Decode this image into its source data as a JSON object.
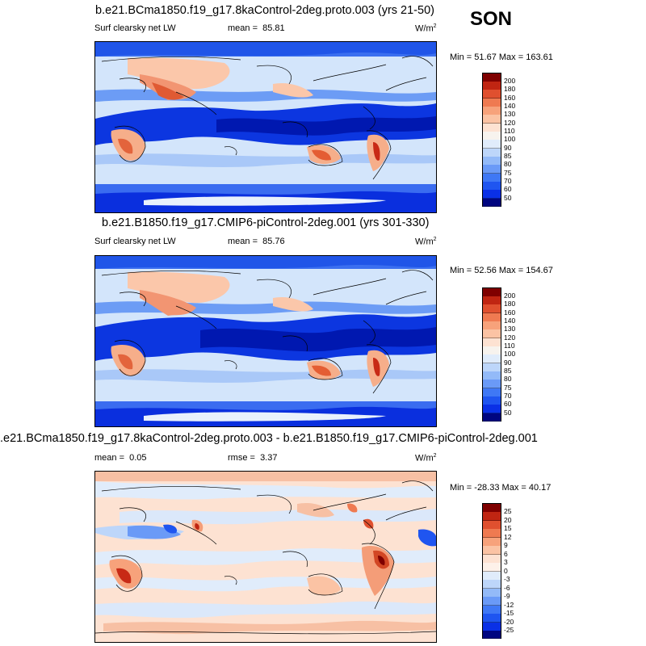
{
  "season": "SON",
  "colors": {
    "control_scale": [
      "#000580",
      "#0010c8",
      "#0a30e6",
      "#1f55f0",
      "#3f78f5",
      "#6a9af7",
      "#93baf8",
      "#bdd6fa",
      "#e0ecfb",
      "#fde2d2",
      "#fbc3a4",
      "#f7a27b",
      "#ef7a51",
      "#e0502f",
      "#c02512",
      "#7f0000"
    ],
    "diff_scale": [
      "#000580",
      "#0010c8",
      "#0a30e6",
      "#1f55f0",
      "#3f78f5",
      "#6a9af7",
      "#93baf8",
      "#bdd6fa",
      "#e0ecfb",
      "#fde2d2",
      "#fbc3a4",
      "#f7a27b",
      "#ef7a51",
      "#e0502f",
      "#c02512",
      "#7f0000"
    ],
    "ocean_low": "#0020d4",
    "ocean_mid": "#2458e8",
    "ocean_base": "#d3e5fb",
    "land_warm": "#f5b08d",
    "land_hot": "#e2562f"
  },
  "panels": [
    {
      "case": "b.e21.BCma1850.f19_g17.8kaControl-2deg.proto.003 (yrs 21-50)",
      "left_label": "Surf clearsky net LW",
      "stat_label": "mean =",
      "stat_value": "85.81",
      "units": "W/m",
      "units_exp": "2",
      "min_label": "Min =",
      "min_value": "51.67",
      "max_label": "Max =",
      "max_value": "163.61",
      "levels": [
        "200",
        "180",
        "160",
        "140",
        "130",
        "120",
        "110",
        "100",
        "90",
        "85",
        "80",
        "75",
        "70",
        "60",
        "50"
      ]
    },
    {
      "case": "b.e21.B1850.f19_g17.CMIP6-piControl-2deg.001 (yrs 301-330)",
      "left_label": "Surf clearsky net LW",
      "stat_label": "mean =",
      "stat_value": "85.76",
      "units": "W/m",
      "units_exp": "2",
      "min_label": "Min =",
      "min_value": "52.56",
      "max_label": "Max =",
      "max_value": "154.67",
      "levels": [
        "200",
        "180",
        "160",
        "140",
        "130",
        "120",
        "110",
        "100",
        "90",
        "85",
        "80",
        "75",
        "70",
        "60",
        "50"
      ]
    },
    {
      "case": ".e21.BCma1850.f19_g17.8kaControl-2deg.proto.003 - b.e21.B1850.f19_g17.CMIP6-piControl-2deg.001",
      "left_label": "mean =",
      "left_value": "0.05",
      "stat_label": "rmse =",
      "stat_value": "3.37",
      "units": "W/m",
      "units_exp": "2",
      "min_label": "Min =",
      "min_value": "-28.33",
      "max_label": "Max =",
      "max_value": "40.17",
      "levels": [
        "25",
        "20",
        "15",
        "12",
        "9",
        "6",
        "3",
        "0",
        "-3",
        "-6",
        "-9",
        "-12",
        "-15",
        "-20",
        "-25"
      ]
    }
  ]
}
